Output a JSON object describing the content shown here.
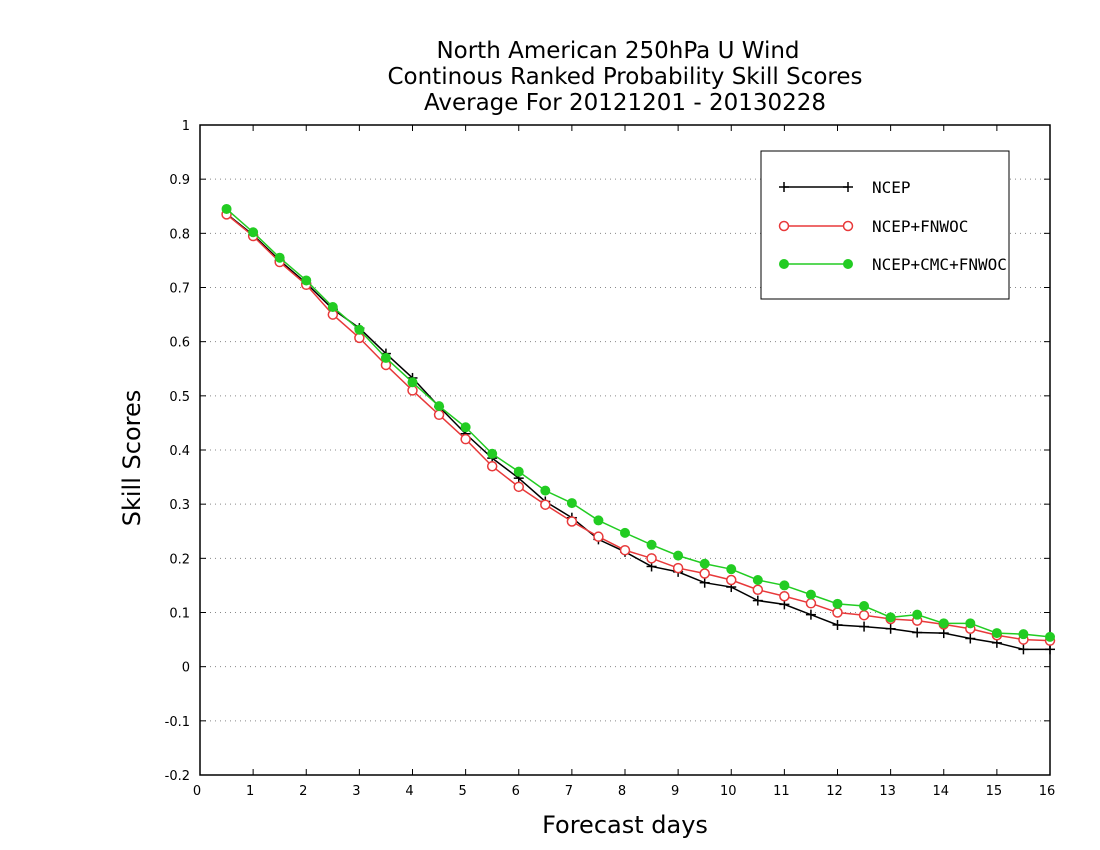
{
  "chart_data": {
    "type": "line",
    "title": [
      "North American 250hPa U Wind",
      "Continous Ranked Probability Skill Scores",
      "Average For 20121201 - 20130228"
    ],
    "xlabel": "Forecast days",
    "ylabel": "Skill Scores",
    "xlim": [
      0,
      16
    ],
    "ylim": [
      -0.2,
      1
    ],
    "xticks": [
      "0",
      "1",
      "2",
      "3",
      "4",
      "5",
      "6",
      "7",
      "8",
      "9",
      "10",
      "11",
      "12",
      "13",
      "14",
      "15",
      "16"
    ],
    "yticks": [
      "-0.2",
      "-0.1",
      "0",
      "0.1",
      "0.2",
      "0.3",
      "0.4",
      "0.5",
      "0.6",
      "0.7",
      "0.8",
      "0.9",
      "1"
    ],
    "grid": "horizontal dotted",
    "legend_position": "top-right",
    "x": [
      0.5,
      1,
      1.5,
      2,
      2.5,
      3,
      3.5,
      4,
      4.5,
      5,
      5.5,
      6,
      6.5,
      7,
      7.5,
      8,
      8.5,
      9,
      9.5,
      10,
      10.5,
      11,
      11.5,
      12,
      12.5,
      13,
      13.5,
      14,
      14.5,
      15,
      15.5,
      16
    ],
    "series": [
      {
        "name": "NCEP",
        "color": "#000000",
        "marker": "plus",
        "values": [
          0.836,
          0.797,
          0.75,
          0.708,
          0.66,
          0.625,
          0.578,
          0.533,
          0.48,
          0.43,
          0.385,
          0.348,
          0.305,
          0.275,
          0.235,
          0.212,
          0.185,
          0.175,
          0.155,
          0.147,
          0.122,
          0.115,
          0.096,
          0.077,
          0.074,
          0.07,
          0.063,
          0.062,
          0.052,
          0.044,
          0.032,
          0.032
        ]
      },
      {
        "name": "NCEP+FNWOC",
        "color": "#e8393a",
        "marker": "open-circle",
        "values": [
          0.835,
          0.795,
          0.747,
          0.705,
          0.65,
          0.607,
          0.557,
          0.51,
          0.465,
          0.42,
          0.37,
          0.332,
          0.299,
          0.268,
          0.24,
          0.215,
          0.2,
          0.182,
          0.172,
          0.16,
          0.142,
          0.13,
          0.117,
          0.1,
          0.095,
          0.088,
          0.085,
          0.078,
          0.07,
          0.058,
          0.05,
          0.048
        ]
      },
      {
        "name": "NCEP+CMC+FNWOC",
        "color": "#22cc22",
        "marker": "filled-circle",
        "values": [
          0.845,
          0.802,
          0.755,
          0.713,
          0.664,
          0.622,
          0.57,
          0.525,
          0.481,
          0.442,
          0.393,
          0.36,
          0.325,
          0.302,
          0.27,
          0.247,
          0.225,
          0.205,
          0.19,
          0.18,
          0.16,
          0.15,
          0.133,
          0.116,
          0.112,
          0.091,
          0.096,
          0.08,
          0.08,
          0.062,
          0.06,
          0.055
        ]
      }
    ]
  }
}
